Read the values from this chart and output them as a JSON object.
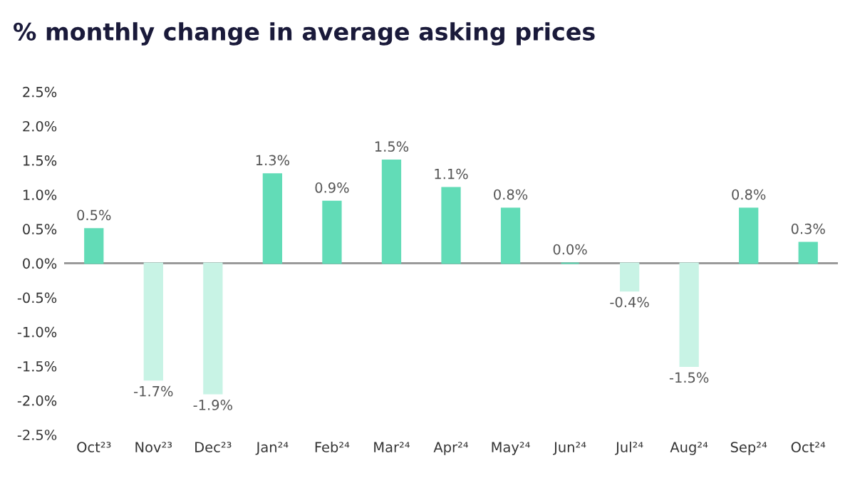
{
  "chart_data": {
    "type": "bar",
    "title": "% monthly change in average asking prices",
    "categories": [
      "Oct²³",
      "Nov²³",
      "Dec²³",
      "Jan²⁴",
      "Feb²⁴",
      "Mar²⁴",
      "Apr²⁴",
      "May²⁴",
      "Jun²⁴",
      "Jul²⁴",
      "Aug²⁴",
      "Sep²⁴",
      "Oct²⁴"
    ],
    "values": [
      0.5,
      -1.7,
      -1.9,
      1.3,
      0.9,
      1.5,
      1.1,
      0.8,
      0.0,
      -0.4,
      -1.5,
      0.8,
      0.3
    ],
    "value_labels": [
      "0.5%",
      "-1.7%",
      "-1.9%",
      "1.3%",
      "0.9%",
      "1.5%",
      "1.1%",
      "0.8%",
      "0.0%",
      "-0.4%",
      "-1.5%",
      "0.8%",
      "0.3%"
    ],
    "colors": [
      "#62dcb7",
      "#c8f3e5",
      "#c8f3e5",
      "#62dcb7",
      "#62dcb7",
      "#62dcb7",
      "#62dcb7",
      "#62dcb7",
      "#62dcb7",
      "#c8f3e5",
      "#c8f3e5",
      "#62dcb7",
      "#62dcb7"
    ],
    "ylim": [
      -2.5,
      2.5
    ],
    "yticks": [
      {
        "value": -2.5,
        "label": "-2.5%"
      },
      {
        "value": -2.0,
        "label": "-2.0%"
      },
      {
        "value": -1.5,
        "label": "-1.5%"
      },
      {
        "value": -1.0,
        "label": "-1.0%"
      },
      {
        "value": -0.5,
        "label": "-0.5%"
      },
      {
        "value": 0.0,
        "label": "0.0%"
      },
      {
        "value": 0.5,
        "label": "0.5%"
      },
      {
        "value": 1.0,
        "label": "1.0%"
      },
      {
        "value": 1.5,
        "label": "1.5%"
      },
      {
        "value": 2.0,
        "label": "2.0%"
      },
      {
        "value": 2.5,
        "label": "2.5%"
      }
    ],
    "ref_lines": [
      {
        "axis": "y",
        "value": 0,
        "color": "#9a9a9a"
      }
    ],
    "grid": false,
    "legend": false
  }
}
